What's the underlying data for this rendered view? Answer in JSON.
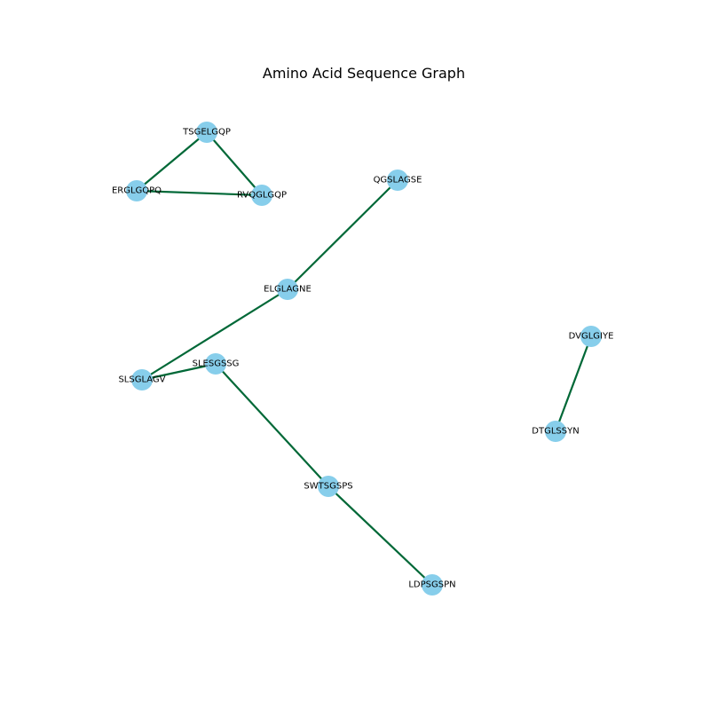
{
  "title": "Amino Acid Sequence Graph",
  "colors": {
    "node_fill": "#87ceeb",
    "edge_stroke": "#006837",
    "label_text": "#000000",
    "background": "#ffffff"
  },
  "nodes": [
    {
      "id": "TSGELGQP",
      "label": "TSGELGQP"
    },
    {
      "id": "ERGLGQPQ",
      "label": "ERGLGQPQ"
    },
    {
      "id": "RVQGLGQP",
      "label": "RVQGLGQP"
    },
    {
      "id": "QGSLAGSE",
      "label": "QGSLAGSE"
    },
    {
      "id": "ELGLAGNE",
      "label": "ELGLAGNE"
    },
    {
      "id": "SLSGLAGV",
      "label": "SLSGLAGV"
    },
    {
      "id": "SLESGSSG",
      "label": "SLESGSSG"
    },
    {
      "id": "SWTSGSPS",
      "label": "SWTSGSPS"
    },
    {
      "id": "LDPSGSPN",
      "label": "LDPSGSPN"
    },
    {
      "id": "DVGLGIYE",
      "label": "DVGLGIYE"
    },
    {
      "id": "DTGLSSYN",
      "label": "DTGLSSYN"
    }
  ],
  "edges": [
    {
      "source": "TSGELGQP",
      "target": "ERGLGQPQ"
    },
    {
      "source": "TSGELGQP",
      "target": "RVQGLGQP"
    },
    {
      "source": "ERGLGQPQ",
      "target": "RVQGLGQP"
    },
    {
      "source": "QGSLAGSE",
      "target": "ELGLAGNE"
    },
    {
      "source": "ELGLAGNE",
      "target": "SLSGLAGV"
    },
    {
      "source": "SLSGLAGV",
      "target": "SLESGSSG"
    },
    {
      "source": "SLESGSSG",
      "target": "SWTSGSPS"
    },
    {
      "source": "SWTSGSPS",
      "target": "LDPSGSPN"
    },
    {
      "source": "DVGLGIYE",
      "target": "DTGLSSYN"
    }
  ]
}
